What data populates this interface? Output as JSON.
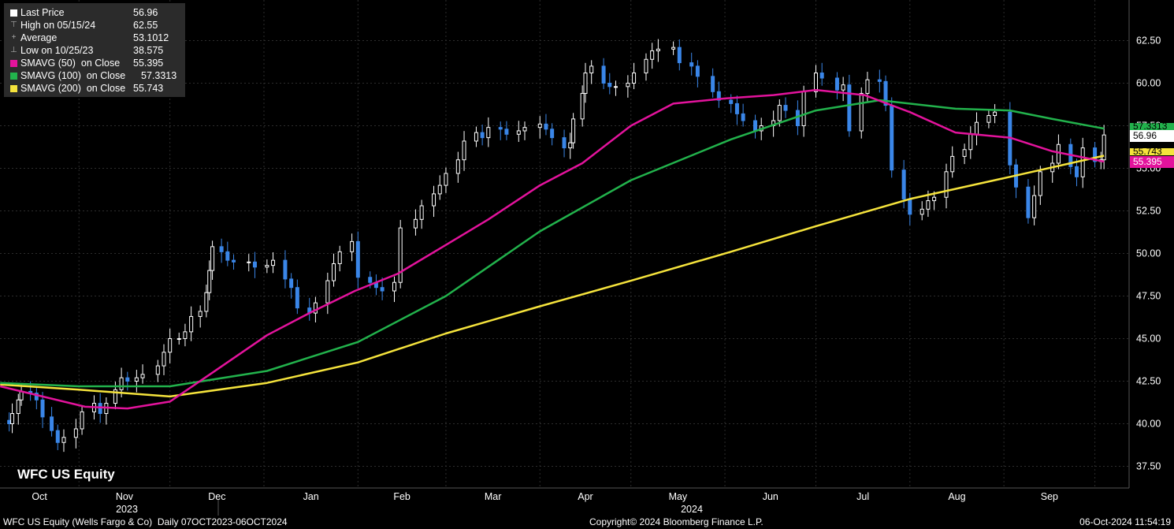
{
  "legend": {
    "last_price": {
      "label": "Last Price",
      "value": "56.96"
    },
    "high": {
      "label": "High on 05/15/24",
      "value": "62.55"
    },
    "average": {
      "label": "Average",
      "value": "53.1012"
    },
    "low": {
      "label": "Low on 10/25/23",
      "value": "38.575"
    },
    "sma50": {
      "label": "SMAVG (50)  on Close",
      "value": "55.395",
      "color": "#e3139c"
    },
    "sma100": {
      "label": "SMAVG (100)  on Close",
      "value": "57.3313",
      "color": "#22b24c"
    },
    "sma200": {
      "label": "SMAVG (200)  on Close",
      "value": "55.743",
      "color": "#f5e33c"
    }
  },
  "ticker": "WFC US Equity",
  "footer": {
    "left": "WFC US Equity (Wells Fargo & Co)  Daily 07OCT2023-06OCT2024",
    "center": "Copyright© 2024 Bloomberg Finance L.P.",
    "right": "06-Oct-2024 11:54:19"
  },
  "tags": {
    "last_price": "56.96",
    "sma100": "57.3313",
    "sma200": "55.743",
    "sma50": "55.395"
  },
  "chart_data": {
    "type": "candlestick",
    "ylim": [
      36.5,
      64.5
    ],
    "y_ticks": [
      "37.50",
      "40.00",
      "42.50",
      "45.00",
      "47.50",
      "50.00",
      "52.50",
      "55.00",
      "57.50",
      "60.00",
      "62.50"
    ],
    "y_tick_values": [
      37.5,
      40,
      42.5,
      45,
      47.5,
      50,
      52.5,
      55,
      57.5,
      60,
      62.5
    ],
    "x_months": [
      "Oct",
      "Nov",
      "Dec",
      "Jan",
      "Feb",
      "Mar",
      "Apr",
      "May",
      "Jun",
      "Jul",
      "Aug",
      "Sep"
    ],
    "x_years": [
      "2023",
      "2024"
    ],
    "close_series": [
      [
        "2023-10-06",
        40.2
      ],
      [
        "2023-10-09",
        40.0
      ],
      [
        "2023-10-10",
        40.6
      ],
      [
        "2023-10-12",
        41.4
      ],
      [
        "2023-10-13",
        41.9
      ],
      [
        "2023-10-16",
        41.8
      ],
      [
        "2023-10-18",
        41.4
      ],
      [
        "2023-10-20",
        40.4
      ],
      [
        "2023-10-23",
        39.6
      ],
      [
        "2023-10-25",
        38.9
      ],
      [
        "2023-10-27",
        39.2
      ],
      [
        "2023-10-31",
        39.7
      ],
      [
        "2023-11-02",
        40.7
      ],
      [
        "2023-11-06",
        41.2
      ],
      [
        "2023-11-08",
        40.6
      ],
      [
        "2023-11-10",
        41.2
      ],
      [
        "2023-11-13",
        42.0
      ],
      [
        "2023-11-15",
        42.7
      ],
      [
        "2023-11-17",
        42.5
      ],
      [
        "2023-11-20",
        42.7
      ],
      [
        "2023-11-22",
        42.9
      ],
      [
        "2023-11-27",
        43.4
      ],
      [
        "2023-11-29",
        44.2
      ],
      [
        "2023-12-01",
        45.0
      ],
      [
        "2023-12-04",
        45.0
      ],
      [
        "2023-12-06",
        45.4
      ],
      [
        "2023-12-08",
        46.3
      ],
      [
        "2023-12-11",
        46.6
      ],
      [
        "2023-12-13",
        47.7
      ],
      [
        "2023-12-14",
        49.0
      ],
      [
        "2023-12-15",
        50.4
      ],
      [
        "2023-12-18",
        50.1
      ],
      [
        "2023-12-20",
        49.6
      ],
      [
        "2023-12-22",
        49.5
      ],
      [
        "2023-12-27",
        49.5
      ],
      [
        "2023-12-29",
        49.2
      ],
      [
        "2024-01-02",
        49.3
      ],
      [
        "2024-01-04",
        49.6
      ],
      [
        "2024-01-08",
        48.5
      ],
      [
        "2024-01-10",
        48.0
      ],
      [
        "2024-01-12",
        46.8
      ],
      [
        "2024-01-16",
        46.5
      ],
      [
        "2024-01-18",
        47.1
      ],
      [
        "2024-01-22",
        48.4
      ],
      [
        "2024-01-24",
        49.4
      ],
      [
        "2024-01-26",
        50.1
      ],
      [
        "2024-01-30",
        50.7
      ],
      [
        "2024-02-01",
        48.6
      ],
      [
        "2024-02-05",
        48.3
      ],
      [
        "2024-02-07",
        48.0
      ],
      [
        "2024-02-09",
        47.8
      ],
      [
        "2024-02-13",
        48.3
      ],
      [
        "2024-02-15",
        51.5
      ],
      [
        "2024-02-20",
        52.0
      ],
      [
        "2024-02-22",
        52.8
      ],
      [
        "2024-02-26",
        53.5
      ],
      [
        "2024-02-28",
        54.0
      ],
      [
        "2024-03-01",
        54.7
      ],
      [
        "2024-03-05",
        55.5
      ],
      [
        "2024-03-07",
        56.6
      ],
      [
        "2024-03-11",
        57.1
      ],
      [
        "2024-03-13",
        56.8
      ],
      [
        "2024-03-15",
        57.4
      ],
      [
        "2024-03-19",
        57.3
      ],
      [
        "2024-03-21",
        57.0
      ],
      [
        "2024-03-25",
        57.2
      ],
      [
        "2024-03-27",
        57.4
      ],
      [
        "2024-04-01",
        57.6
      ],
      [
        "2024-04-03",
        57.3
      ],
      [
        "2024-04-05",
        56.8
      ],
      [
        "2024-04-09",
        56.2
      ],
      [
        "2024-04-11",
        56.5
      ],
      [
        "2024-04-12",
        57.9
      ],
      [
        "2024-04-15",
        59.4
      ],
      [
        "2024-04-16",
        60.6
      ],
      [
        "2024-04-18",
        61.0
      ],
      [
        "2024-04-22",
        60.0
      ],
      [
        "2024-04-24",
        59.8
      ],
      [
        "2024-04-26",
        59.8
      ],
      [
        "2024-04-30",
        60.0
      ],
      [
        "2024-05-02",
        60.6
      ],
      [
        "2024-05-06",
        61.4
      ],
      [
        "2024-05-08",
        61.9
      ],
      [
        "2024-05-10",
        62.0
      ],
      [
        "2024-05-15",
        62.1
      ],
      [
        "2024-05-17",
        61.2
      ],
      [
        "2024-05-21",
        61.0
      ],
      [
        "2024-05-23",
        60.4
      ],
      [
        "2024-05-28",
        59.5
      ],
      [
        "2024-05-30",
        59.0
      ],
      [
        "2024-06-03",
        58.8
      ],
      [
        "2024-06-05",
        58.2
      ],
      [
        "2024-06-07",
        57.8
      ],
      [
        "2024-06-11",
        57.2
      ],
      [
        "2024-06-13",
        57.5
      ],
      [
        "2024-06-17",
        57.8
      ],
      [
        "2024-06-19",
        58.7
      ],
      [
        "2024-06-21",
        58.4
      ],
      [
        "2024-06-25",
        57.5
      ],
      [
        "2024-06-27",
        59.5
      ],
      [
        "2024-07-01",
        60.6
      ],
      [
        "2024-07-03",
        60.3
      ],
      [
        "2024-07-08",
        59.6
      ],
      [
        "2024-07-10",
        59.9
      ],
      [
        "2024-07-12",
        57.2
      ],
      [
        "2024-07-16",
        59.4
      ],
      [
        "2024-07-18",
        60.2
      ],
      [
        "2024-07-22",
        60.1
      ],
      [
        "2024-07-24",
        58.7
      ],
      [
        "2024-07-26",
        54.9
      ],
      [
        "2024-07-30",
        53.2
      ],
      [
        "2024-08-01",
        52.3
      ],
      [
        "2024-08-05",
        52.6
      ],
      [
        "2024-08-07",
        53.1
      ],
      [
        "2024-08-09",
        53.3
      ],
      [
        "2024-08-13",
        54.8
      ],
      [
        "2024-08-15",
        55.7
      ],
      [
        "2024-08-19",
        56.1
      ],
      [
        "2024-08-21",
        57.0
      ],
      [
        "2024-08-23",
        57.7
      ],
      [
        "2024-08-27",
        58.1
      ],
      [
        "2024-08-29",
        58.3
      ],
      [
        "2024-09-03",
        55.2
      ],
      [
        "2024-09-05",
        53.9
      ],
      [
        "2024-09-09",
        52.1
      ],
      [
        "2024-09-11",
        53.4
      ],
      [
        "2024-09-13",
        54.8
      ],
      [
        "2024-09-17",
        55.3
      ],
      [
        "2024-09-19",
        56.4
      ],
      [
        "2024-09-23",
        55.1
      ],
      [
        "2024-09-25",
        54.5
      ],
      [
        "2024-09-27",
        56.2
      ],
      [
        "2024-10-01",
        55.4
      ],
      [
        "2024-10-03",
        55.5
      ],
      [
        "2024-10-04",
        56.96
      ]
    ],
    "sma50": [
      [
        "2023-10-06",
        42.2
      ],
      [
        "2023-10-20",
        41.6
      ],
      [
        "2023-11-03",
        41.0
      ],
      [
        "2023-11-17",
        40.9
      ],
      [
        "2023-12-01",
        41.3
      ],
      [
        "2023-12-15",
        43.0
      ],
      [
        "2024-01-02",
        45.2
      ],
      [
        "2024-01-16",
        46.5
      ],
      [
        "2024-01-31",
        47.8
      ],
      [
        "2024-02-14",
        48.8
      ],
      [
        "2024-03-01",
        50.5
      ],
      [
        "2024-03-15",
        52.0
      ],
      [
        "2024-04-01",
        54.0
      ],
      [
        "2024-04-15",
        55.3
      ],
      [
        "2024-05-01",
        57.5
      ],
      [
        "2024-05-15",
        58.8
      ],
      [
        "2024-06-01",
        59.1
      ],
      [
        "2024-06-17",
        59.3
      ],
      [
        "2024-07-01",
        59.6
      ],
      [
        "2024-07-17",
        59.3
      ],
      [
        "2024-08-01",
        58.3
      ],
      [
        "2024-08-16",
        57.1
      ],
      [
        "2024-09-03",
        56.8
      ],
      [
        "2024-09-17",
        56.0
      ],
      [
        "2024-10-04",
        55.395
      ]
    ],
    "sma100": [
      [
        "2023-10-06",
        42.4
      ],
      [
        "2023-11-01",
        42.2
      ],
      [
        "2023-12-01",
        42.2
      ],
      [
        "2024-01-02",
        43.1
      ],
      [
        "2024-02-01",
        44.8
      ],
      [
        "2024-03-01",
        47.5
      ],
      [
        "2024-04-01",
        51.3
      ],
      [
        "2024-05-01",
        54.3
      ],
      [
        "2024-06-03",
        56.7
      ],
      [
        "2024-07-01",
        58.4
      ],
      [
        "2024-07-22",
        59.0
      ],
      [
        "2024-08-16",
        58.5
      ],
      [
        "2024-09-03",
        58.4
      ],
      [
        "2024-09-17",
        57.9
      ],
      [
        "2024-10-04",
        57.3313
      ]
    ],
    "sma200": [
      [
        "2023-10-06",
        42.3
      ],
      [
        "2023-11-01",
        42.0
      ],
      [
        "2023-12-01",
        41.6
      ],
      [
        "2024-01-02",
        42.4
      ],
      [
        "2024-02-01",
        43.6
      ],
      [
        "2024-03-01",
        45.3
      ],
      [
        "2024-04-01",
        46.9
      ],
      [
        "2024-05-01",
        48.4
      ],
      [
        "2024-06-03",
        50.1
      ],
      [
        "2024-07-01",
        51.6
      ],
      [
        "2024-08-01",
        53.2
      ],
      [
        "2024-09-03",
        54.5
      ],
      [
        "2024-10-04",
        55.743
      ]
    ],
    "colors": {
      "up": "#ffffff",
      "down": "#3a86e8",
      "grid": "#2d2d2d",
      "sma50": "#e3139c",
      "sma100": "#22b24c",
      "sma200": "#f5e33c"
    }
  }
}
